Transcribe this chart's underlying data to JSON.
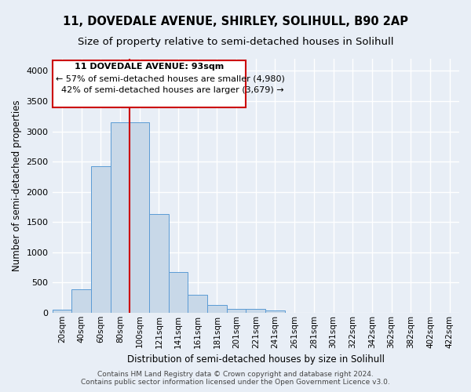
{
  "title_line1": "11, DOVEDALE AVENUE, SHIRLEY, SOLIHULL, B90 2AP",
  "title_line2": "Size of property relative to semi-detached houses in Solihull",
  "xlabel": "Distribution of semi-detached houses by size in Solihull",
  "ylabel": "Number of semi-detached properties",
  "footer_line1": "Contains HM Land Registry data © Crown copyright and database right 2024.",
  "footer_line2": "Contains public sector information licensed under the Open Government Licence v3.0.",
  "annotation_title": "11 DOVEDALE AVENUE: 93sqm",
  "annotation_line1": "← 57% of semi-detached houses are smaller (4,980)",
  "annotation_line2": "  42% of semi-detached houses are larger (3,679) →",
  "bar_categories": [
    "20sqm",
    "40sqm",
    "60sqm",
    "80sqm",
    "100sqm",
    "121sqm",
    "141sqm",
    "161sqm",
    "181sqm",
    "201sqm",
    "221sqm",
    "241sqm",
    "261sqm",
    "281sqm",
    "301sqm",
    "322sqm",
    "342sqm",
    "362sqm",
    "382sqm",
    "402sqm",
    "422sqm"
  ],
  "bar_values": [
    50,
    390,
    2420,
    3150,
    3150,
    1630,
    670,
    290,
    130,
    65,
    65,
    30,
    0,
    0,
    0,
    0,
    0,
    0,
    0,
    0,
    0
  ],
  "bar_color": "#c8d8e8",
  "bar_edge_color": "#5b9bd5",
  "red_line_color": "#cc0000",
  "ylim": [
    0,
    4200
  ],
  "yticks": [
    0,
    500,
    1000,
    1500,
    2000,
    2500,
    3000,
    3500,
    4000
  ],
  "bg_color": "#e8eef6",
  "plot_bg_color": "#e8eef6",
  "grid_color": "#ffffff",
  "annotation_box_color": "#ffffff",
  "annotation_box_edge": "#cc0000",
  "title_fontsize": 10.5,
  "subtitle_fontsize": 9.5,
  "red_line_bar_index": 3.5
}
